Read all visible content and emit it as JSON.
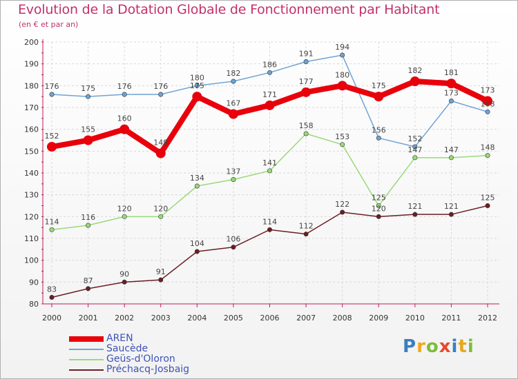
{
  "title": "Evolution de la Dotation Globale de Fonctionnement par Habitant",
  "subtitle": "(en € et par an)",
  "logo": {
    "text": "Proxiti",
    "colors": [
      "#3a7fc1",
      "#f2a81d",
      "#7dbd3b",
      "#e64a2e",
      "#3a7fc1",
      "#e6a81d",
      "#7dbd3b"
    ]
  },
  "chart_data": {
    "type": "line",
    "x": [
      "2000",
      "2001",
      "2002",
      "2003",
      "2004",
      "2005",
      "2006",
      "2007",
      "2008",
      "2009",
      "2010",
      "2011",
      "2012"
    ],
    "ylim": [
      80,
      200
    ],
    "yticks": [
      80,
      90,
      100,
      110,
      120,
      130,
      140,
      150,
      160,
      170,
      180,
      190,
      200
    ],
    "grid": true,
    "legend_position": "bottom-left",
    "series": [
      {
        "name": "AREN",
        "color": "#e8000b",
        "values": [
          152,
          155,
          160,
          149,
          175,
          167,
          171,
          177,
          180,
          175,
          182,
          181,
          173
        ]
      },
      {
        "name": "Saucède",
        "color": "#6fa3d3",
        "values": [
          176,
          175,
          176,
          176,
          180,
          182,
          186,
          191,
          194,
          156,
          152,
          173,
          168
        ]
      },
      {
        "name": "Geüs-d'Oloron",
        "color": "#99d978",
        "values": [
          114,
          116,
          120,
          120,
          134,
          137,
          141,
          158,
          153,
          125,
          147,
          147,
          148
        ]
      },
      {
        "name": "Préchacq-Josbaig",
        "color": "#6b1e22",
        "values": [
          83,
          87,
          90,
          91,
          104,
          106,
          114,
          112,
          122,
          120,
          121,
          121,
          125
        ]
      }
    ]
  }
}
